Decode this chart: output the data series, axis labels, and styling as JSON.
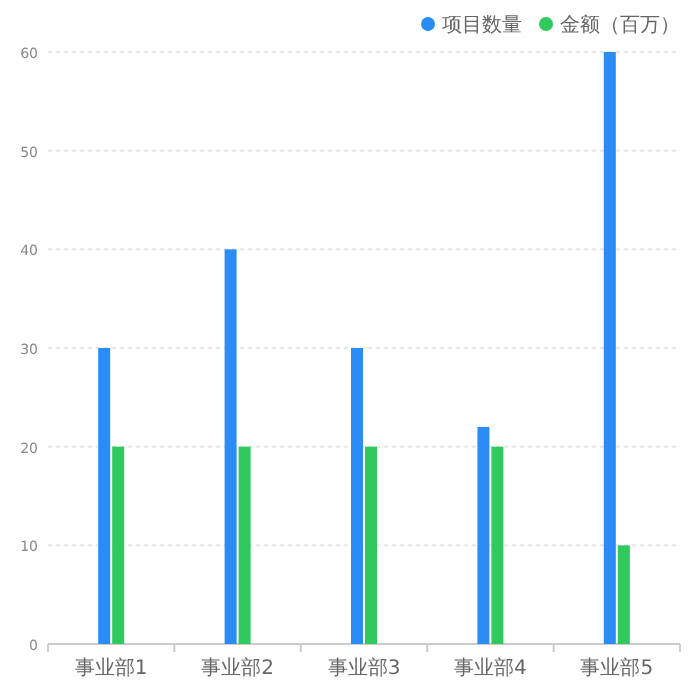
{
  "chart_data": {
    "type": "bar",
    "categories": [
      "事业部1",
      "事业部2",
      "事业部3",
      "事业部4",
      "事业部5"
    ],
    "series": [
      {
        "name": "项目数量",
        "color": "#2b8cf5",
        "values": [
          30,
          40,
          30,
          22,
          60
        ]
      },
      {
        "name": "金额（百万）",
        "color": "#2fc95e",
        "values": [
          20,
          20,
          20,
          20,
          10
        ]
      }
    ],
    "ylim": [
      0,
      60
    ],
    "yticks": [
      0,
      10,
      20,
      30,
      40,
      50,
      60
    ],
    "grid": "y",
    "legend": "top right",
    "marker": "circle"
  }
}
